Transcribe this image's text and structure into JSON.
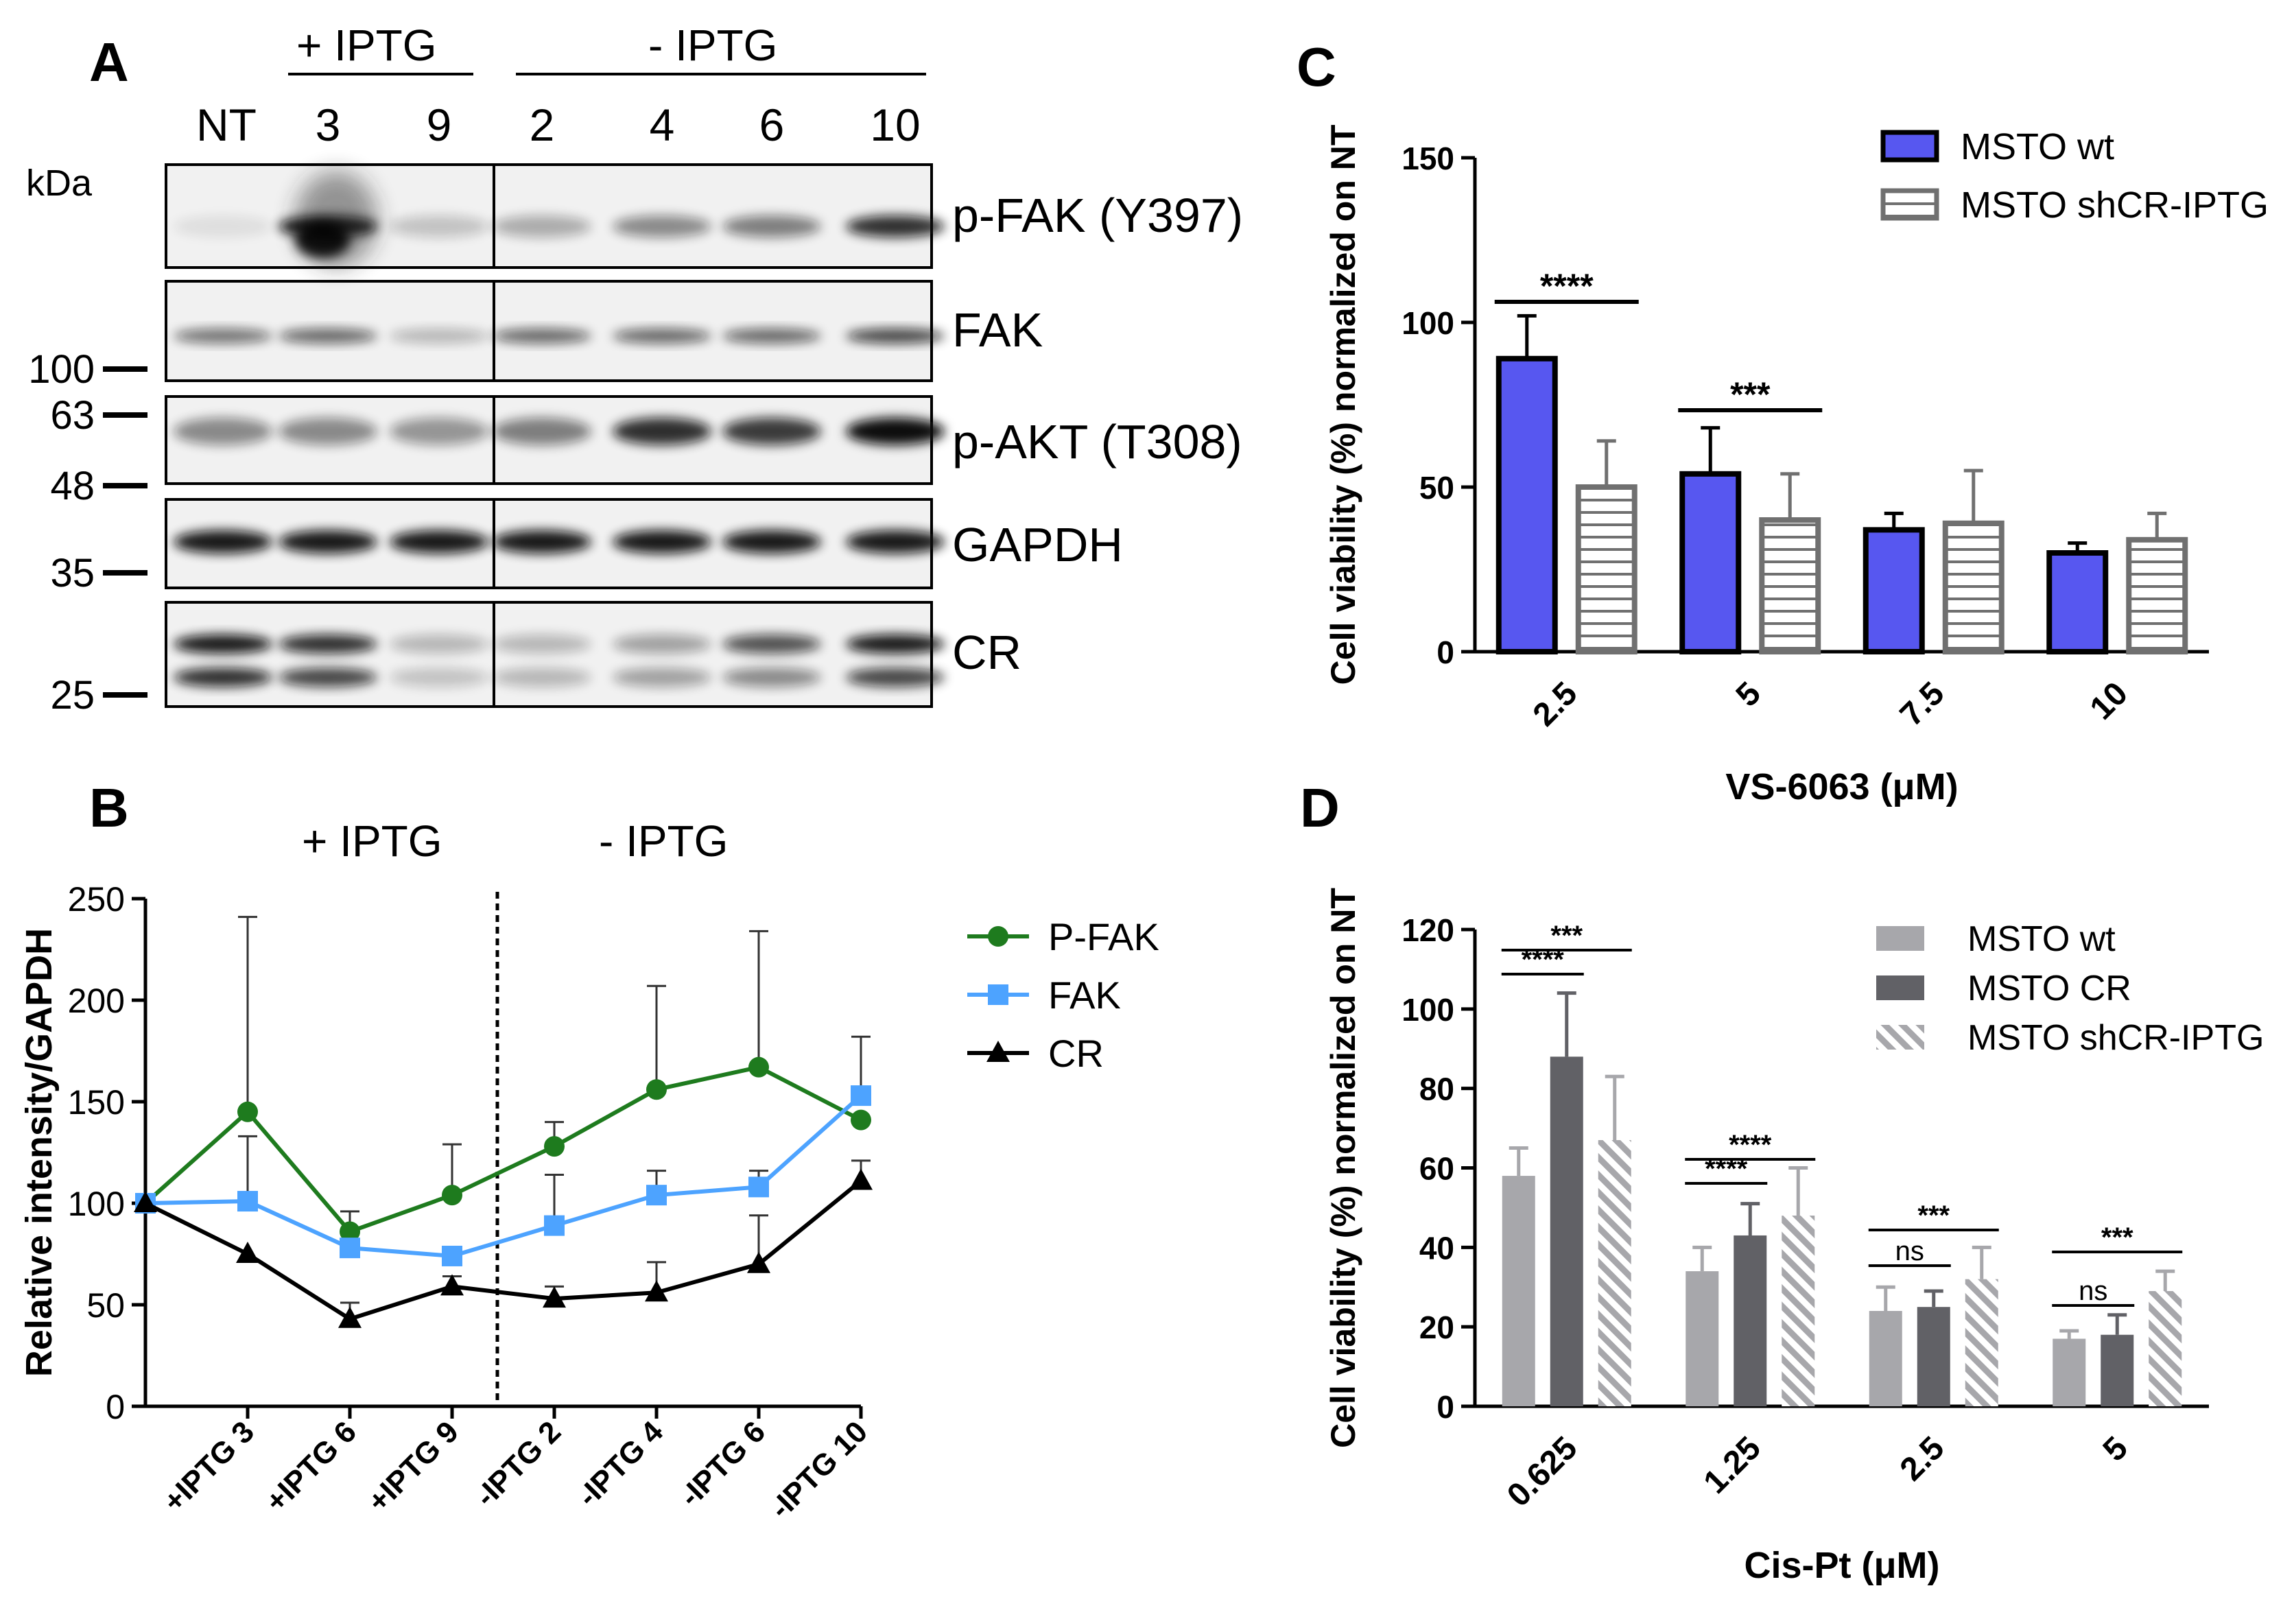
{
  "panels": {
    "A": {
      "letter": "A",
      "kda_label": "kDa",
      "group_plus": "+ IPTG",
      "group_minus": "- IPTG",
      "lanes": [
        "NT",
        "3",
        "9",
        "2",
        "4",
        "6",
        "10"
      ],
      "mw_markers": [
        "100",
        "63",
        "48",
        "35",
        "25"
      ],
      "rows": [
        "p-FAK (Y397)",
        "FAK",
        "p-AKT (T308)",
        "GAPDH",
        "CR"
      ]
    },
    "B": {
      "letter": "B",
      "group_plus": "+ IPTG",
      "group_minus": "- IPTG"
    },
    "C": {
      "letter": "C"
    },
    "D": {
      "letter": "D"
    }
  },
  "chart_data": [
    {
      "id": "B",
      "type": "line",
      "title": "",
      "ylabel": "Relative intensity/GAPDH",
      "xlabel": "",
      "ylim": [
        0,
        250
      ],
      "yticks": [
        "0",
        "50",
        "100",
        "150",
        "200",
        "250"
      ],
      "categories": [
        "",
        "+IPTG 3",
        "+IPTG 6",
        "+IPTG 9",
        "-IPTG 2",
        "-IPTG 4",
        "-IPTG 6",
        "-IPTG 10"
      ],
      "series": [
        {
          "name": "P-FAK",
          "color": "#1e7b1e",
          "marker": "circle",
          "values": [
            100,
            145,
            86,
            104,
            128,
            156,
            167,
            141
          ],
          "errors": [
            0,
            96,
            10,
            25,
            12,
            51,
            67,
            0
          ]
        },
        {
          "name": "FAK",
          "color": "#4da3ff",
          "marker": "square",
          "values": [
            100,
            101,
            78,
            74,
            89,
            104,
            108,
            153
          ],
          "errors": [
            0,
            32,
            0,
            0,
            25,
            12,
            8,
            29
          ]
        },
        {
          "name": "CR",
          "color": "#000000",
          "marker": "triangle",
          "values": [
            100,
            75,
            43,
            59,
            53,
            56,
            70,
            111
          ],
          "errors": [
            0,
            0,
            8,
            5,
            6,
            15,
            24,
            10
          ]
        }
      ]
    },
    {
      "id": "C",
      "type": "bar",
      "ylabel": "Cell viability (%) normalized on NT",
      "xlabel": "VS-6063 (μM)",
      "ylim": [
        0,
        150
      ],
      "yticks": [
        "0",
        "50",
        "100",
        "150"
      ],
      "categories": [
        "2.5",
        "5",
        "7.5",
        "10"
      ],
      "series": [
        {
          "name": "MSTO wt",
          "legend_label": "MSTO wt",
          "color": "#5757f0",
          "pattern": "solid",
          "values": [
            89,
            54,
            37,
            30
          ],
          "errors": [
            13,
            14,
            5,
            3
          ]
        },
        {
          "name": "MSTO shCR-IPTG",
          "legend_label": "MSTO shCR-IPTG",
          "color": "#ffffff",
          "pattern": "horizontal-stripes",
          "values": [
            50,
            40,
            39,
            34
          ],
          "errors": [
            14,
            14,
            16,
            8
          ]
        }
      ],
      "significance": [
        {
          "category": "2.5",
          "label": "****"
        },
        {
          "category": "5",
          "label": "***"
        }
      ]
    },
    {
      "id": "D",
      "type": "bar",
      "ylabel": "Cell viability (%) normalized on NT",
      "xlabel": "Cis-Pt (μM)",
      "ylim": [
        0,
        120
      ],
      "yticks": [
        "0",
        "20",
        "40",
        "60",
        "80",
        "100",
        "120"
      ],
      "categories": [
        "0.625",
        "1.25",
        "2.5",
        "5"
      ],
      "series": [
        {
          "name": "MSTO wt",
          "legend_label": "MSTO wt",
          "color": "#a7a7ab",
          "pattern": "solid",
          "values": [
            58,
            34,
            24,
            17
          ],
          "errors": [
            7,
            6,
            6,
            2
          ]
        },
        {
          "name": "MSTO CR",
          "legend_label": "MSTO CR",
          "color": "#616166",
          "pattern": "solid",
          "values": [
            88,
            43,
            25,
            18
          ],
          "errors": [
            16,
            8,
            4,
            5
          ]
        },
        {
          "name": "MSTO shCR-IPTG",
          "legend_label": "MSTO shCR-IPTG",
          "color": "#a7a7ab",
          "pattern": "diagonal-stripes",
          "values": [
            67,
            48,
            32,
            29
          ],
          "errors": [
            16,
            12,
            8,
            5
          ]
        }
      ],
      "significance": [
        {
          "category": "0.625",
          "pair": "wt-shCR",
          "label": "***"
        },
        {
          "category": "0.625",
          "pair": "wt-CR",
          "label": "****"
        },
        {
          "category": "1.25",
          "pair": "wt-shCR",
          "label": "****"
        },
        {
          "category": "1.25",
          "pair": "wt-CR",
          "label": "****"
        },
        {
          "category": "2.5",
          "pair": "wt-shCR",
          "label": "***"
        },
        {
          "category": "2.5",
          "pair": "wt-CR",
          "label": "ns"
        },
        {
          "category": "5",
          "pair": "wt-shCR",
          "label": "***"
        },
        {
          "category": "5",
          "pair": "wt-CR",
          "label": "ns"
        }
      ]
    }
  ]
}
